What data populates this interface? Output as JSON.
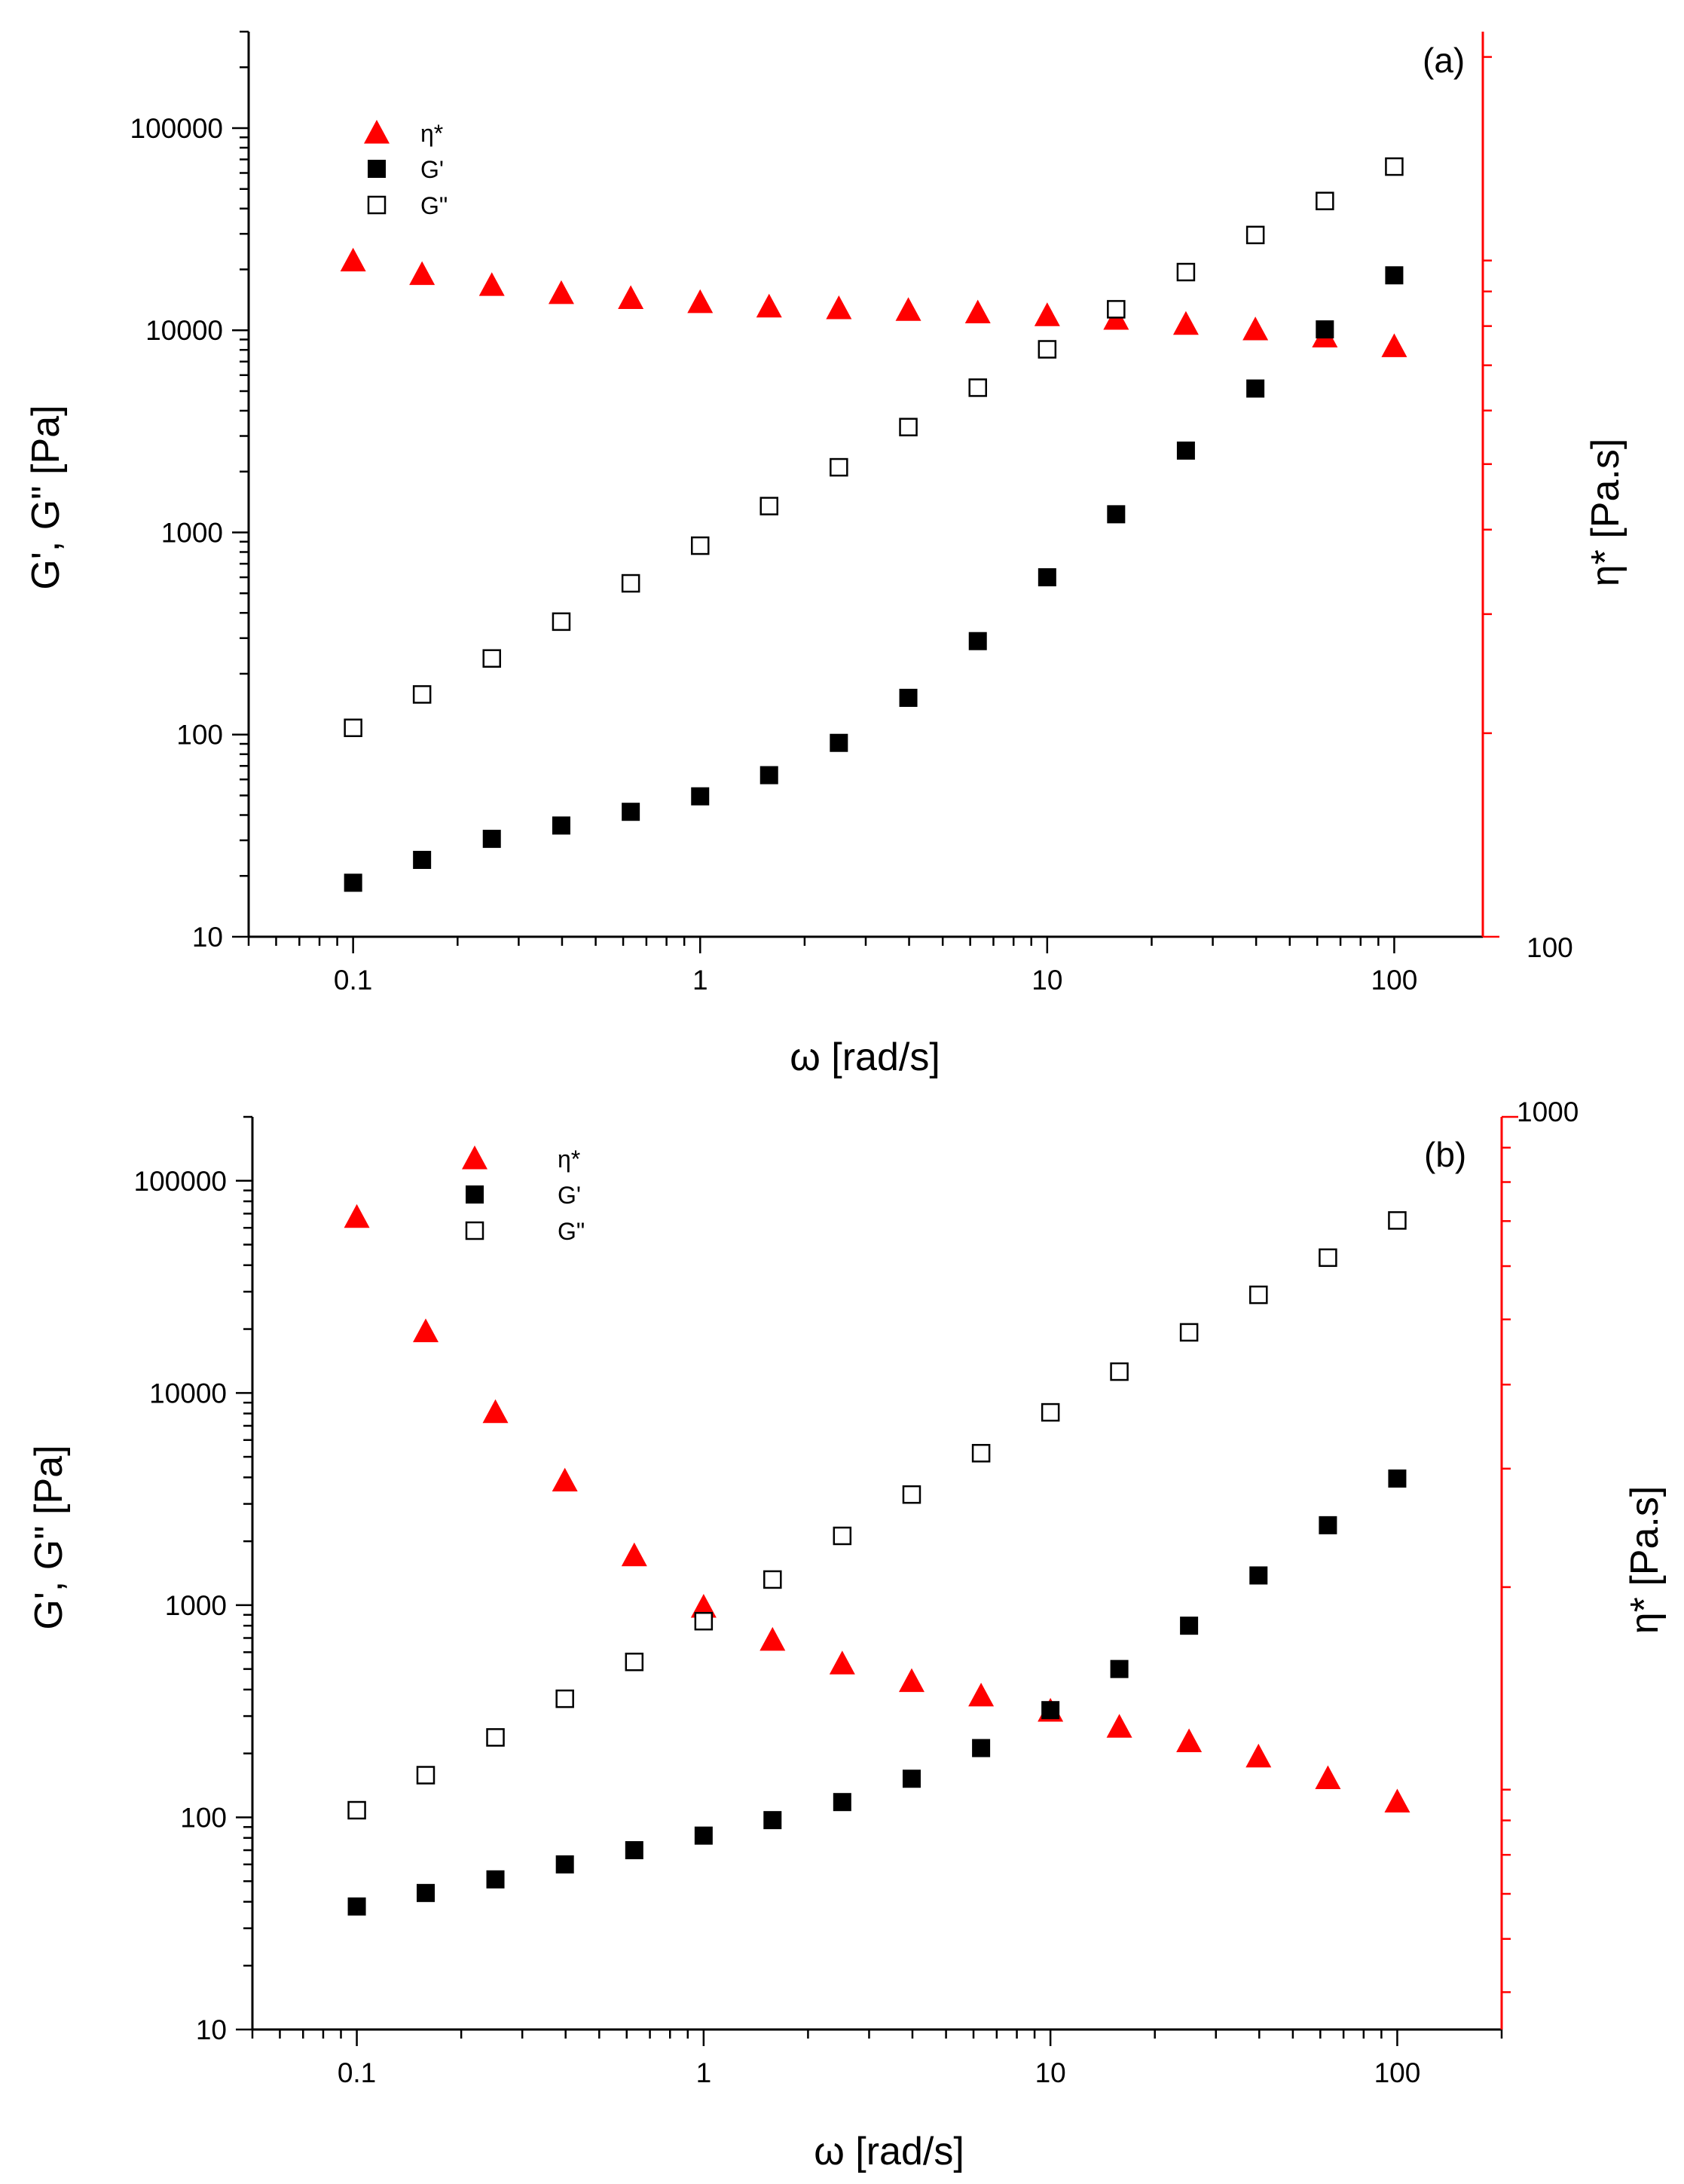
{
  "chart_data": [
    {
      "type": "scatter",
      "panel_label": "(a)",
      "xlabel": "ω [rad/s]",
      "ylabel": "G', G\" [Pa]",
      "y2label": "η* [Pa.s]",
      "xscale": "log",
      "yscale": "log",
      "y2scale": "log",
      "xlim": [
        0.05,
        180
      ],
      "ylim": [
        10,
        300000
      ],
      "y2lim": [
        100,
        2180
      ],
      "xticks": [
        {
          "v": 0.1,
          "label": "0.1"
        },
        {
          "v": 1,
          "label": "1"
        },
        {
          "v": 10,
          "label": "10"
        },
        {
          "v": 100,
          "label": "100"
        }
      ],
      "yticks": [
        {
          "v": 10,
          "label": "10"
        },
        {
          "v": 100,
          "label": "100"
        },
        {
          "v": 1000,
          "label": "1000"
        },
        {
          "v": 10000,
          "label": "10000"
        },
        {
          "v": 100000,
          "label": "100000"
        }
      ],
      "y2ticks": [
        {
          "v": 100,
          "label": "100"
        }
      ],
      "y2_minor": [
        200,
        300,
        400,
        500,
        600,
        700,
        800,
        900,
        1000,
        2000
      ],
      "x": [
        0.1,
        0.158,
        0.251,
        0.398,
        0.631,
        1,
        1.58,
        2.51,
        3.98,
        6.31,
        10,
        15.8,
        25.1,
        39.8,
        63.1,
        100
      ],
      "series": [
        {
          "name": "η*",
          "marker": "triangle",
          "color": "#ff0000",
          "axis": "right",
          "values": [
            1000,
            955,
            920,
            895,
            880,
            868,
            855,
            850,
            845,
            838,
            830,
            820,
            806,
            791,
            772,
            747
          ]
        },
        {
          "name": "G'",
          "marker": "square-filled",
          "color": "#000000",
          "axis": "left",
          "values": [
            18.5,
            24,
            30.5,
            35.5,
            41.5,
            49.5,
            63,
            91,
            152,
            290,
            600,
            1230,
            2540,
            5150,
            10100,
            18700
          ]
        },
        {
          "name": "G\"",
          "marker": "square-open",
          "color": "#000000",
          "axis": "left",
          "values": [
            108,
            158,
            238,
            362,
            560,
            860,
            1350,
            2100,
            3320,
            5200,
            8050,
            12700,
            19400,
            29600,
            43600,
            64500
          ]
        }
      ],
      "legend": [
        {
          "label": "η*"
        },
        {
          "label": "G'"
        },
        {
          "label": "G\""
        }
      ],
      "legend_position": "top-left"
    },
    {
      "type": "scatter",
      "panel_label": "(b)",
      "xlabel": "ω [rad/s]",
      "ylabel": "G', G\" [Pa]",
      "y2label": "η* [Pa.s]",
      "xscale": "log",
      "yscale": "log",
      "y2scale": "log",
      "xlim": [
        0.05,
        200
      ],
      "ylim": [
        10,
        200000
      ],
      "y2lim": [
        44,
        1000
      ],
      "xticks": [
        {
          "v": 0.1,
          "label": "0.1"
        },
        {
          "v": 1,
          "label": "1"
        },
        {
          "v": 10,
          "label": "10"
        },
        {
          "v": 100,
          "label": "100"
        }
      ],
      "yticks": [
        {
          "v": 10,
          "label": "10"
        },
        {
          "v": 100,
          "label": "100"
        },
        {
          "v": 1000,
          "label": "1000"
        },
        {
          "v": 10000,
          "label": "10000"
        },
        {
          "v": 100000,
          "label": "100000"
        }
      ],
      "y2ticks": [
        {
          "v": 1000,
          "label": "1000"
        }
      ],
      "y2_minor": [
        50,
        60,
        70,
        80,
        90,
        100,
        200,
        300,
        400,
        500,
        600,
        700,
        800,
        900
      ],
      "x": [
        0.1,
        0.158,
        0.251,
        0.398,
        0.631,
        1,
        1.58,
        2.51,
        3.98,
        6.31,
        10,
        15.8,
        25.1,
        39.8,
        63.1,
        100
      ],
      "series": [
        {
          "name": "η*",
          "marker": "triangle",
          "color": "#ff0000",
          "axis": "right",
          "values": [
            710,
            480,
            364,
            288,
            223,
            187,
            167,
            154,
            145,
            138,
            131,
            124,
            118,
            112,
            104,
            96
          ]
        },
        {
          "name": "G'",
          "marker": "square-filled",
          "color": "#000000",
          "axis": "left",
          "values": [
            38,
            44,
            51,
            60,
            70,
            82,
            97,
            118,
            152,
            212,
            320,
            500,
            800,
            1380,
            2380,
            3950
          ]
        },
        {
          "name": "G\"",
          "marker": "square-open",
          "color": "#000000",
          "axis": "left",
          "values": [
            108,
            158,
            238,
            362,
            540,
            840,
            1320,
            2120,
            3320,
            5200,
            8100,
            12600,
            19300,
            29000,
            43400,
            65000
          ]
        }
      ],
      "legend": [
        {
          "label": "η*"
        },
        {
          "label": "G'"
        },
        {
          "label": "G\""
        }
      ],
      "legend_position": "top-left"
    }
  ]
}
